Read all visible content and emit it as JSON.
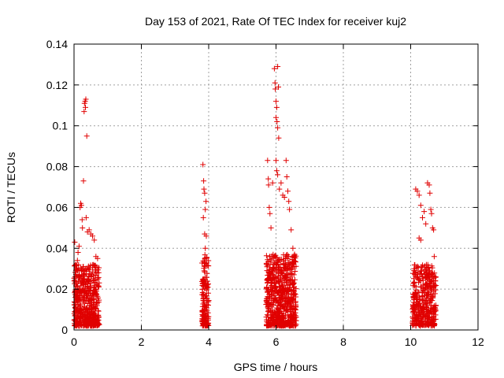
{
  "chart_data": {
    "type": "scatter",
    "title": "Day 153 of 2021, Rate Of TEC Index for receiver kuj2",
    "xlabel": "GPS time / hours",
    "ylabel": "ROTI / TECUs",
    "xlim": [
      0,
      12
    ],
    "ylim": [
      0,
      0.14
    ],
    "x_ticks": [
      0,
      2,
      4,
      6,
      8,
      10,
      12
    ],
    "x_tick_labels": [
      "0",
      "2",
      "4",
      "6",
      "8",
      "10",
      "12"
    ],
    "y_ticks": [
      0,
      0.02,
      0.04,
      0.06,
      0.08,
      0.1,
      0.12,
      0.14
    ],
    "y_tick_labels": [
      "0",
      "0.02",
      "0.04",
      "0.06",
      "0.08",
      "0.1",
      "0.12",
      "0.14"
    ],
    "grid": true,
    "marker": "+",
    "series": [
      {
        "name": "ROTI",
        "color": "#e00000",
        "clusters": [
          {
            "x_range": [
              0.0,
              0.75
            ],
            "count": 520,
            "y_max_typical": 0.03
          },
          {
            "x_range": [
              3.8,
              4.0
            ],
            "count": 150,
            "y_max_typical": 0.035
          },
          {
            "x_range": [
              5.7,
              6.6
            ],
            "count": 650,
            "y_max_typical": 0.035
          },
          {
            "x_range": [
              10.05,
              10.75
            ],
            "count": 420,
            "y_max_typical": 0.03
          }
        ],
        "points": [
          [
            0.02,
            0.043
          ],
          [
            0.05,
            0.032
          ],
          [
            0.1,
            0.034
          ],
          [
            0.12,
            0.038
          ],
          [
            0.15,
            0.041
          ],
          [
            0.18,
            0.06
          ],
          [
            0.2,
            0.062
          ],
          [
            0.22,
            0.061
          ],
          [
            0.24,
            0.054
          ],
          [
            0.25,
            0.05
          ],
          [
            0.28,
            0.073
          ],
          [
            0.3,
            0.107
          ],
          [
            0.31,
            0.111
          ],
          [
            0.33,
            0.112
          ],
          [
            0.35,
            0.113
          ],
          [
            0.34,
            0.109
          ],
          [
            0.38,
            0.095
          ],
          [
            0.36,
            0.055
          ],
          [
            0.4,
            0.048
          ],
          [
            0.45,
            0.049
          ],
          [
            0.5,
            0.047
          ],
          [
            0.55,
            0.046
          ],
          [
            0.6,
            0.044
          ],
          [
            0.65,
            0.036
          ],
          [
            0.7,
            0.035
          ],
          [
            3.83,
            0.081
          ],
          [
            3.85,
            0.073
          ],
          [
            3.86,
            0.069
          ],
          [
            3.88,
            0.067
          ],
          [
            3.9,
            0.059
          ],
          [
            3.92,
            0.063
          ],
          [
            3.84,
            0.055
          ],
          [
            3.88,
            0.047
          ],
          [
            3.9,
            0.04
          ],
          [
            3.93,
            0.046
          ],
          [
            5.75,
            0.083
          ],
          [
            5.77,
            0.074
          ],
          [
            5.78,
            0.071
          ],
          [
            5.8,
            0.06
          ],
          [
            5.82,
            0.057
          ],
          [
            5.85,
            0.05
          ],
          [
            5.9,
            0.072
          ],
          [
            5.95,
            0.128
          ],
          [
            5.97,
            0.121
          ],
          [
            5.98,
            0.118
          ],
          [
            6.0,
            0.112
          ],
          [
            6.02,
            0.109
          ],
          [
            6.05,
            0.129
          ],
          [
            6.07,
            0.119
          ],
          [
            6.0,
            0.104
          ],
          [
            6.03,
            0.102
          ],
          [
            6.05,
            0.099
          ],
          [
            6.08,
            0.094
          ],
          [
            6.0,
            0.083
          ],
          [
            6.02,
            0.078
          ],
          [
            6.05,
            0.076
          ],
          [
            6.1,
            0.069
          ],
          [
            6.15,
            0.072
          ],
          [
            6.2,
            0.066
          ],
          [
            6.25,
            0.065
          ],
          [
            6.3,
            0.083
          ],
          [
            6.32,
            0.075
          ],
          [
            6.35,
            0.068
          ],
          [
            6.38,
            0.063
          ],
          [
            6.4,
            0.059
          ],
          [
            6.45,
            0.049
          ],
          [
            6.5,
            0.04
          ],
          [
            6.55,
            0.037
          ],
          [
            10.15,
            0.069
          ],
          [
            10.2,
            0.068
          ],
          [
            10.25,
            0.066
          ],
          [
            10.3,
            0.061
          ],
          [
            10.35,
            0.055
          ],
          [
            10.4,
            0.058
          ],
          [
            10.45,
            0.052
          ],
          [
            10.5,
            0.072
          ],
          [
            10.55,
            0.071
          ],
          [
            10.57,
            0.067
          ],
          [
            10.6,
            0.059
          ],
          [
            10.62,
            0.057
          ],
          [
            10.65,
            0.05
          ],
          [
            10.68,
            0.049
          ],
          [
            10.7,
            0.036
          ],
          [
            10.25,
            0.045
          ],
          [
            10.3,
            0.044
          ],
          [
            10.1,
            0.03
          ],
          [
            10.12,
            0.029
          ]
        ]
      }
    ]
  }
}
